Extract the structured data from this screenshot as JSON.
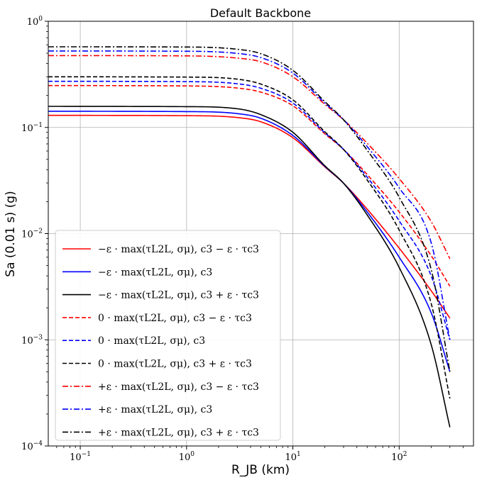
{
  "chart_data": {
    "type": "line",
    "title": "Default Backbone",
    "xlabel": "R_JB (km)",
    "ylabel": "Sa (0.01 s) (g)",
    "x_scale": "log",
    "y_scale": "log",
    "xlim": [
      0.05,
      500
    ],
    "ylim": [
      0.0001,
      1
    ],
    "x_ticks": [
      {
        "base": "10",
        "exp": "−1",
        "v": 0.1
      },
      {
        "base": "10",
        "exp": "0",
        "v": 1
      },
      {
        "base": "10",
        "exp": "1",
        "v": 10
      },
      {
        "base": "10",
        "exp": "2",
        "v": 100
      }
    ],
    "y_ticks": [
      {
        "base": "10",
        "exp": "0",
        "v": 1
      },
      {
        "base": "10",
        "exp": "−1",
        "v": 0.1
      },
      {
        "base": "10",
        "exp": "−2",
        "v": 0.01
      },
      {
        "base": "10",
        "exp": "−3",
        "v": 0.001
      },
      {
        "base": "10",
        "exp": "−4",
        "v": 0.0001
      }
    ],
    "grid": true,
    "legend_position": "lower-left",
    "x": [
      0.05,
      1,
      3,
      5,
      10,
      20,
      30,
      50,
      100,
      200,
      300
    ],
    "series": [
      {
        "name": "−ε · max(τL2L, σμ), c3 − ε · τc3",
        "color": "#ff0000",
        "dash": "solid",
        "values": [
          0.13,
          0.129,
          0.124,
          0.113,
          0.08,
          0.0425,
          0.0298,
          0.017,
          0.0073,
          0.0029,
          0.0016
        ]
      },
      {
        "name": "−ε · max(τL2L, σμ), c3",
        "color": "#0000ff",
        "dash": "solid",
        "values": [
          0.142,
          0.141,
          0.135,
          0.122,
          0.084,
          0.043,
          0.0298,
          0.016,
          0.006,
          0.0018,
          0.0005
        ]
      },
      {
        "name": "−ε · max(τL2L, σμ), c3 + ε · τc3",
        "color": "#000000",
        "dash": "solid",
        "values": [
          0.158,
          0.157,
          0.15,
          0.132,
          0.09,
          0.0435,
          0.0298,
          0.015,
          0.0048,
          0.0009,
          0.00015
        ]
      },
      {
        "name": "0 · max(τL2L, σμ), c3 − ε · τc3",
        "color": "#ff0000",
        "dash": "dashed",
        "values": [
          0.248,
          0.246,
          0.235,
          0.215,
          0.16,
          0.087,
          0.062,
          0.036,
          0.016,
          0.0062,
          0.0032
        ]
      },
      {
        "name": "0 · max(τL2L, σμ), c3",
        "color": "#0000ff",
        "dash": "dashed",
        "values": [
          0.272,
          0.27,
          0.258,
          0.234,
          0.17,
          0.089,
          0.062,
          0.034,
          0.0132,
          0.004,
          0.001
        ]
      },
      {
        "name": "0 · max(τL2L, σμ), c3 + ε · τc3",
        "color": "#000000",
        "dash": "dashed",
        "values": [
          0.3,
          0.298,
          0.285,
          0.256,
          0.182,
          0.091,
          0.062,
          0.032,
          0.0108,
          0.0022,
          0.00028
        ]
      },
      {
        "name": "+ε · max(τL2L, σμ), c3 − ε · τc3",
        "color": "#ff0000",
        "dash": "dashdot",
        "values": [
          0.475,
          0.472,
          0.45,
          0.415,
          0.3,
          0.165,
          0.118,
          0.071,
          0.033,
          0.013,
          0.0058
        ]
      },
      {
        "name": "+ε · max(τL2L, σμ), c3",
        "color": "#0000ff",
        "dash": "dashdot",
        "values": [
          0.525,
          0.522,
          0.498,
          0.455,
          0.325,
          0.17,
          0.118,
          0.066,
          0.027,
          0.0082,
          0.001
        ]
      },
      {
        "name": "+ε · max(τL2L, σμ), c3 + ε · τc3",
        "color": "#000000",
        "dash": "dashdot",
        "values": [
          0.575,
          0.572,
          0.545,
          0.495,
          0.345,
          0.175,
          0.118,
          0.061,
          0.022,
          0.0046,
          0.0005
        ]
      }
    ]
  }
}
